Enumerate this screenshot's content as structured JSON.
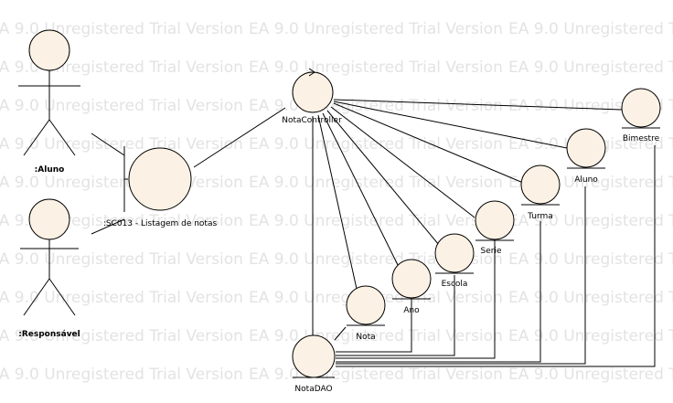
{
  "watermark": {
    "text": "EA 9.0 Unregistered Trial Version",
    "fill": "#e3e3e3"
  },
  "colors": {
    "element_fill": "#fbf1e4",
    "stroke": "#000000"
  },
  "actors": [
    {
      "id": "aluno",
      "label": ":Aluno"
    },
    {
      "id": "responsavel",
      "label": ":Responsável"
    }
  ],
  "boundary": {
    "id": "sc013",
    "label": ":SC013 - Listagem de notas"
  },
  "controller": {
    "id": "notacontroller",
    "label": "NotaController"
  },
  "entities": [
    {
      "id": "bimestre",
      "label": "Bimestre"
    },
    {
      "id": "aluno-entity",
      "label": "Aluno"
    },
    {
      "id": "turma",
      "label": "Turma"
    },
    {
      "id": "serie",
      "label": "Serie"
    },
    {
      "id": "escola",
      "label": "Escola"
    },
    {
      "id": "ano",
      "label": "Ano"
    },
    {
      "id": "nota",
      "label": "Nota"
    },
    {
      "id": "notadao",
      "label": "NotaDAO"
    }
  ]
}
